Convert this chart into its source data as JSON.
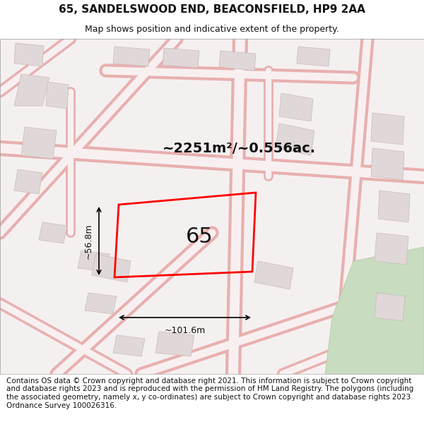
{
  "title": "65, SANDELSWOOD END, BEACONSFIELD, HP9 2AA",
  "subtitle": "Map shows position and indicative extent of the property.",
  "title_fontsize": 11,
  "subtitle_fontsize": 9,
  "footer_text": "Contains OS data © Crown copyright and database right 2021. This information is subject to Crown copyright and database rights 2023 and is reproduced with the permission of HM Land Registry. The polygons (including the associated geometry, namely x, y co-ordinates) are subject to Crown copyright and database rights 2023 Ordnance Survey 100026316.",
  "footer_fontsize": 7.5,
  "bg_color": "#ffffff",
  "map_bg": "#f5f0f0",
  "map_border_color": "#cccccc",
  "area_label": "~2251m²/~0.556ac.",
  "area_label_fontsize": 14,
  "plot_number": "65",
  "plot_number_fontsize": 22,
  "plot_color": "#ff0000",
  "plot_fill": "none",
  "dim_width_label": "~101.6m",
  "dim_height_label": "~56.8m",
  "dim_fontsize": 9,
  "street_color": "#e8b0b0",
  "building_color": "#d0c8c8",
  "building_fill": "#e8e0e0",
  "road_outline": "#f0d0d0",
  "green_area": "#c8dcc0"
}
